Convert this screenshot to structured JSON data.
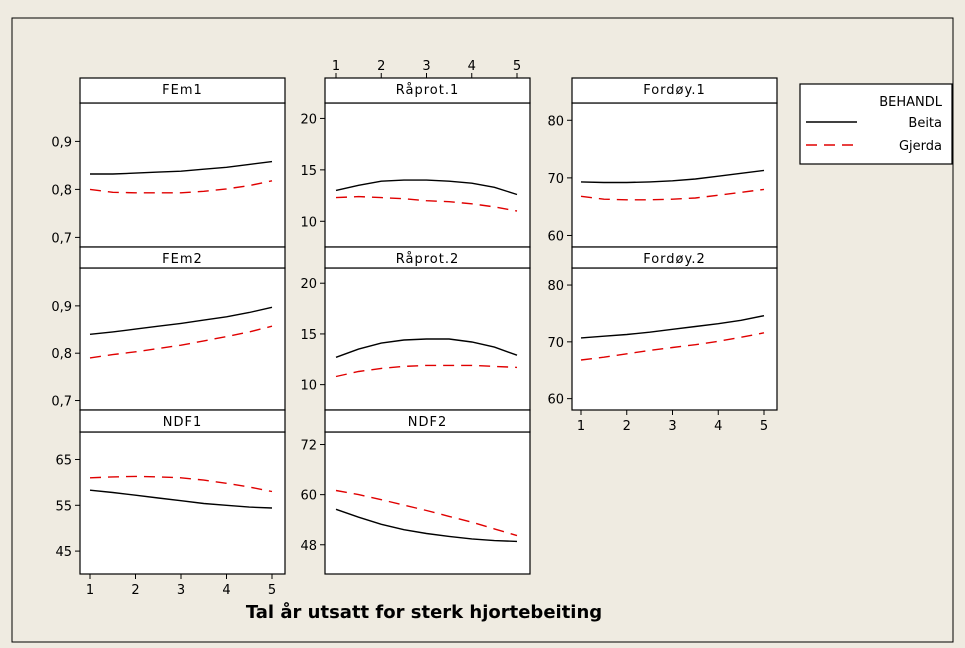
{
  "colors": {
    "background": "#efebe1",
    "beita": "#000000",
    "gjerda": "#e00000"
  },
  "chart_data": {
    "type": "line",
    "xlabel": "Tal år utsatt for sterk hjortebeiting",
    "legend": {
      "title": "BEHANDL",
      "entries": [
        "Beita",
        "Gjerda"
      ],
      "placement": "right"
    },
    "x": [
      1,
      1.5,
      2,
      2.5,
      3,
      3.5,
      4,
      4.5,
      5
    ],
    "panels": [
      {
        "title": "FEm1",
        "ylim": [
          0.68,
          0.98
        ],
        "yticks": [
          "0,7",
          "0,8",
          "0,9"
        ],
        "series": [
          {
            "name": "Beita",
            "values": [
              0.832,
              0.832,
              0.834,
              0.836,
              0.838,
              0.842,
              0.846,
              0.852,
              0.858
            ]
          },
          {
            "name": "Gjerda",
            "values": [
              0.8,
              0.794,
              0.793,
              0.793,
              0.793,
              0.796,
              0.801,
              0.808,
              0.818
            ]
          }
        ]
      },
      {
        "title": "Råprot.1",
        "ylim": [
          7.5,
          21.5
        ],
        "yticks": [
          "10",
          "15",
          "20"
        ],
        "xticks_top": [
          "1",
          "2",
          "3",
          "4",
          "5"
        ],
        "series": [
          {
            "name": "Beita",
            "values": [
              13.0,
              13.5,
              13.9,
              14.0,
              14.0,
              13.9,
              13.7,
              13.3,
              12.6
            ]
          },
          {
            "name": "Gjerda",
            "values": [
              12.3,
              12.4,
              12.3,
              12.2,
              12.0,
              11.9,
              11.7,
              11.4,
              11.0
            ]
          }
        ]
      },
      {
        "title": "Fordøy.1",
        "ylim": [
          58,
          83
        ],
        "yticks": [
          "60",
          "70",
          "80"
        ],
        "series": [
          {
            "name": "Beita",
            "values": [
              69.3,
              69.2,
              69.2,
              69.3,
              69.5,
              69.8,
              70.3,
              70.8,
              71.3
            ]
          },
          {
            "name": "Gjerda",
            "values": [
              66.8,
              66.3,
              66.2,
              66.2,
              66.3,
              66.5,
              67.0,
              67.5,
              68.0
            ]
          }
        ]
      },
      {
        "title": "FEm2",
        "ylim": [
          0.68,
          0.98
        ],
        "yticks": [
          "0,7",
          "0,8",
          "0,9"
        ],
        "series": [
          {
            "name": "Beita",
            "values": [
              0.84,
              0.845,
              0.851,
              0.857,
              0.863,
              0.87,
              0.877,
              0.886,
              0.897
            ]
          },
          {
            "name": "Gjerda",
            "values": [
              0.79,
              0.797,
              0.803,
              0.81,
              0.817,
              0.826,
              0.835,
              0.845,
              0.857
            ]
          }
        ]
      },
      {
        "title": "Råprot.2",
        "ylim": [
          7.5,
          21.5
        ],
        "yticks": [
          "10",
          "15",
          "20"
        ],
        "series": [
          {
            "name": "Beita",
            "values": [
              12.7,
              13.5,
              14.1,
              14.4,
              14.5,
              14.5,
              14.2,
              13.7,
              12.9
            ]
          },
          {
            "name": "Gjerda",
            "values": [
              10.8,
              11.3,
              11.6,
              11.8,
              11.9,
              11.9,
              11.9,
              11.8,
              11.7
            ]
          }
        ]
      },
      {
        "title": "Fordøy.2",
        "ylim": [
          58,
          83
        ],
        "yticks": [
          "60",
          "70",
          "80"
        ],
        "xticks": [
          "1",
          "2",
          "3",
          "4",
          "5"
        ],
        "series": [
          {
            "name": "Beita",
            "values": [
              70.7,
              71.0,
              71.3,
              71.7,
              72.2,
              72.7,
              73.2,
              73.8,
              74.6
            ]
          },
          {
            "name": "Gjerda",
            "values": [
              66.8,
              67.3,
              67.9,
              68.5,
              69.0,
              69.5,
              70.1,
              70.8,
              71.6
            ]
          }
        ]
      },
      {
        "title": "NDF1",
        "ylim": [
          40,
          71
        ],
        "yticks": [
          "45",
          "55",
          "65"
        ],
        "xticks": [
          "1",
          "2",
          "3",
          "4",
          "5"
        ],
        "series": [
          {
            "name": "Beita",
            "values": [
              58.3,
              57.8,
              57.2,
              56.6,
              56.0,
              55.4,
              55.0,
              54.6,
              54.4
            ]
          },
          {
            "name": "Gjerda",
            "values": [
              61.0,
              61.2,
              61.3,
              61.2,
              61.0,
              60.5,
              59.8,
              59.0,
              58.0
            ]
          }
        ]
      },
      {
        "title": "NDF2",
        "ylim": [
          41,
          75
        ],
        "yticks": [
          "48",
          "60",
          "72"
        ],
        "series": [
          {
            "name": "Beita",
            "values": [
              56.5,
              54.6,
              52.9,
              51.6,
              50.7,
              50.0,
              49.4,
              49.0,
              48.8
            ]
          },
          {
            "name": "Gjerda",
            "values": [
              61.0,
              60.0,
              58.8,
              57.5,
              56.2,
              54.8,
              53.4,
              51.8,
              50.2
            ]
          }
        ]
      }
    ]
  }
}
